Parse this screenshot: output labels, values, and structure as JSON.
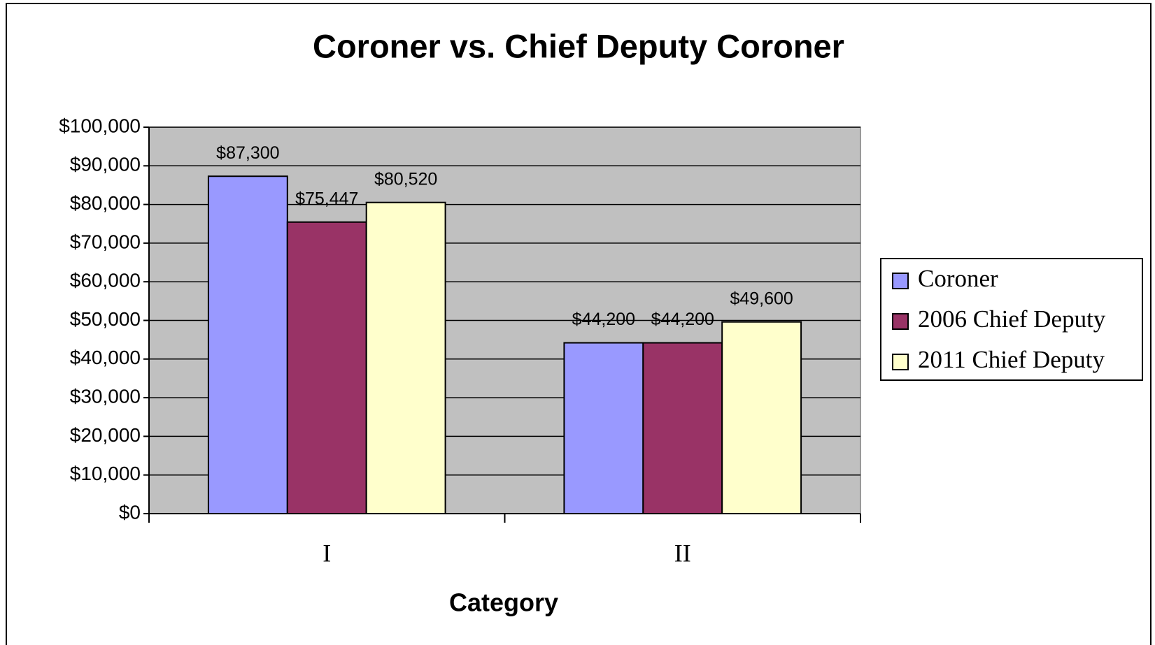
{
  "chart_data": {
    "type": "bar",
    "title": "Coroner vs. Chief Deputy Coroner",
    "x_label": "Category",
    "categories": [
      "I",
      "II"
    ],
    "series": [
      {
        "name": "Coroner",
        "color": "#9999ff",
        "values": [
          87300,
          44200
        ],
        "value_labels": [
          "$87,300",
          "$44,200"
        ]
      },
      {
        "name": "2006 Chief Deputy",
        "color": "#993366",
        "values": [
          75447,
          44200
        ],
        "value_labels": [
          "$75,447",
          "$44,200"
        ]
      },
      {
        "name": "2011 Chief Deputy",
        "color": "#ffffcc",
        "values": [
          80520,
          49600
        ],
        "value_labels": [
          "$80,520",
          "$49,600"
        ]
      }
    ],
    "ylim": [
      0,
      100000
    ],
    "yticks": [
      {
        "value": 0,
        "label": "$0"
      },
      {
        "value": 10000,
        "label": "$10,000"
      },
      {
        "value": 20000,
        "label": "$20,000"
      },
      {
        "value": 30000,
        "label": "$30,000"
      },
      {
        "value": 40000,
        "label": "$40,000"
      },
      {
        "value": 50000,
        "label": "$50,000"
      },
      {
        "value": 60000,
        "label": "$60,000"
      },
      {
        "value": 70000,
        "label": "$70,000"
      },
      {
        "value": 80000,
        "label": "$80,000"
      },
      {
        "value": 90000,
        "label": "$90,000"
      },
      {
        "value": 100000,
        "label": "$100,000"
      }
    ],
    "grid": true,
    "legend": "right",
    "plot_background": "#c0c0c0"
  }
}
